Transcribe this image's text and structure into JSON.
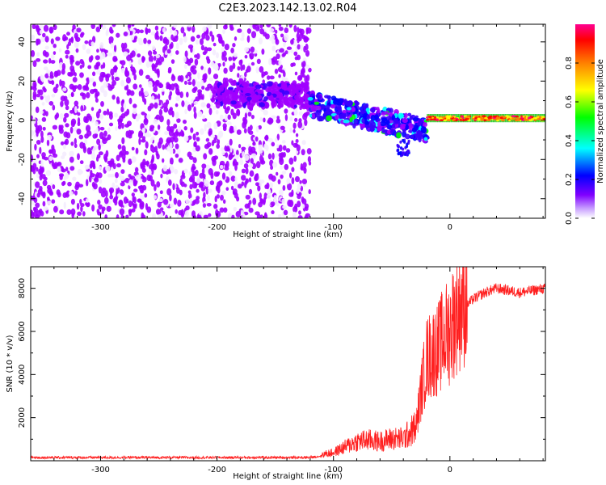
{
  "figure_title": "C2E3.2023.142.13.02.R04",
  "chart_data": [
    {
      "type": "heatmap",
      "xlabel": "Height of straight line (km)",
      "ylabel": "Frequency (Hz)",
      "xlim": [
        -360,
        82
      ],
      "ylim": [
        -50,
        49
      ],
      "x_ticks": [
        -300,
        -200,
        -100,
        0
      ],
      "x_tick_labels": [
        "-300",
        "-200",
        "-100",
        "0"
      ],
      "y_ticks": [
        -40,
        -20,
        0,
        20,
        40
      ],
      "y_tick_labels": [
        "-40",
        "-20",
        "0",
        "20",
        "40"
      ],
      "grid": false,
      "colorbar": {
        "label": "Normalized spectral amplitude",
        "range": [
          0,
          1
        ],
        "ticks": [
          0,
          0.2,
          0.4,
          0.6,
          0.8
        ],
        "tick_labels": [
          "0.0",
          "0.2",
          "0.4",
          "0.6",
          "0.8"
        ],
        "colors": [
          "#f4ecfe",
          "#a000ff",
          "#3a00ff",
          "#0000ff",
          "#00ffff",
          "#00ff00",
          "#ffff00",
          "#ff8000",
          "#ff0000",
          "#ff0080"
        ]
      },
      "regions": [
        {
          "x": [
            -360,
            -120
          ],
          "freq": [
            -50,
            49
          ],
          "amplitude": 0.12,
          "note": "noise"
        },
        {
          "x": [
            -120,
            -20
          ],
          "freq_center": [
            8,
            -5
          ],
          "amplitude": 0.5
        },
        {
          "x": [
            -20,
            82
          ],
          "freq_center": 1,
          "amplitude": 0.9
        }
      ]
    },
    {
      "type": "line",
      "xlabel": "Height of straight line (km)",
      "ylabel": "SNR (10 * v/v)",
      "xlim": [
        -360,
        82
      ],
      "ylim": [
        0,
        9000
      ],
      "x_ticks": [
        -300,
        -200,
        -100,
        0
      ],
      "x_tick_labels": [
        "-300",
        "-200",
        "-100",
        "0"
      ],
      "y_ticks": [
        2000,
        4000,
        6000,
        8000
      ],
      "y_tick_labels": [
        "2000",
        "4000",
        "6000",
        "8000"
      ],
      "grid": false,
      "series": [
        {
          "color": "#ff2020",
          "x": [
            -360,
            -300,
            -200,
            -120,
            -100,
            -90,
            -80,
            -70,
            -60,
            -50,
            -40,
            -30,
            -25,
            -20,
            -15,
            -10,
            -5,
            0,
            5,
            10,
            20,
            30,
            40,
            60,
            82
          ],
          "y": [
            150,
            150,
            150,
            150,
            300,
            500,
            700,
            750,
            700,
            800,
            800,
            1200,
            3000,
            4500,
            4800,
            5000,
            5500,
            5800,
            6500,
            7000,
            7500,
            7800,
            8000,
            7800,
            8000
          ]
        }
      ]
    }
  ]
}
